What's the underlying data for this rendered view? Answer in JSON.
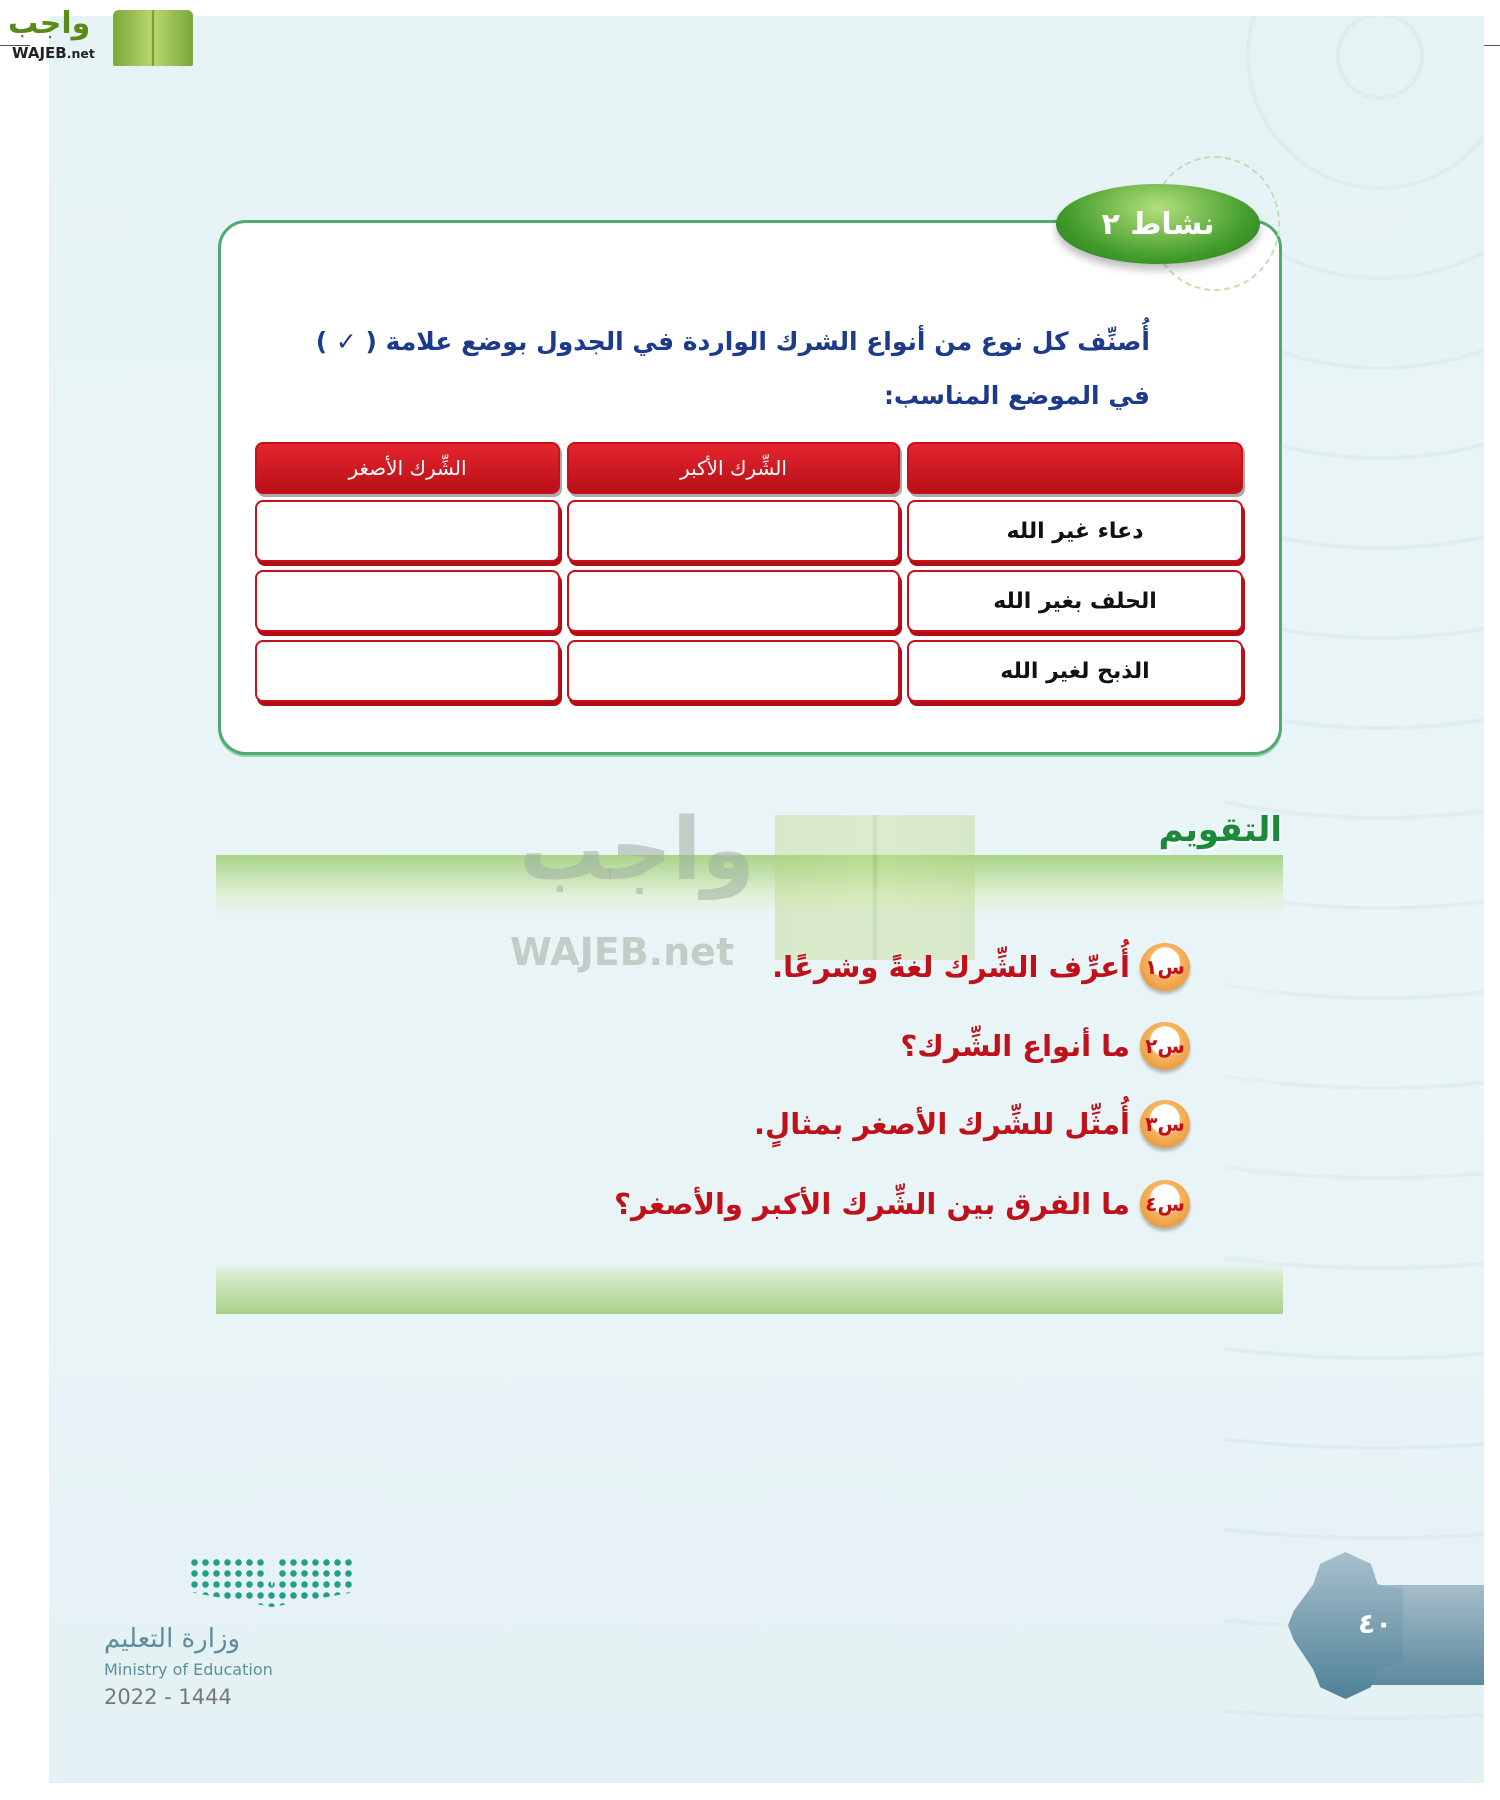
{
  "logo": {
    "arabic": "واجب",
    "latin": "WAJEB",
    "suffix": ".net"
  },
  "activity": {
    "badge": "نشاط ٢",
    "instruction": "أُصنِّف كل نوع من أنواع الشرك الواردة في الجدول بوضع علامة ( ✓ ) في الموضع المناسب:",
    "table": {
      "headers": [
        "",
        "الشِّرك الأكبر",
        "الشِّرك الأصغر"
      ],
      "rows": [
        [
          "دعاء غير الله",
          "",
          ""
        ],
        [
          "الحلف بغير الله",
          "",
          ""
        ],
        [
          "الذبح لغير الله",
          "",
          ""
        ]
      ]
    }
  },
  "evaluation": {
    "title": "التقويم",
    "questions": [
      {
        "num": "س١",
        "text": "أُعرِّف الشِّرك لغةً وشرعًا."
      },
      {
        "num": "س٢",
        "text": "ما أنواع الشِّرك؟"
      },
      {
        "num": "س٣",
        "text": "أُمثِّل للشِّرك الأصغر بمثالٍ."
      },
      {
        "num": "س٤",
        "text": "ما الفرق بين الشِّرك الأكبر والأصغر؟"
      }
    ]
  },
  "watermark": {
    "arabic": "واجب",
    "latin": "WAJEB.net"
  },
  "footer": {
    "ministry_ar": "وزارة التعليم",
    "ministry_en": "Ministry of Education",
    "year": "2022 - 1444",
    "page_number": "٤٠"
  },
  "colors": {
    "accent_green": "#3f9a2a",
    "table_red": "#c8101a",
    "question_red": "#c0101a",
    "instruction_blue": "#1e3a8a"
  }
}
